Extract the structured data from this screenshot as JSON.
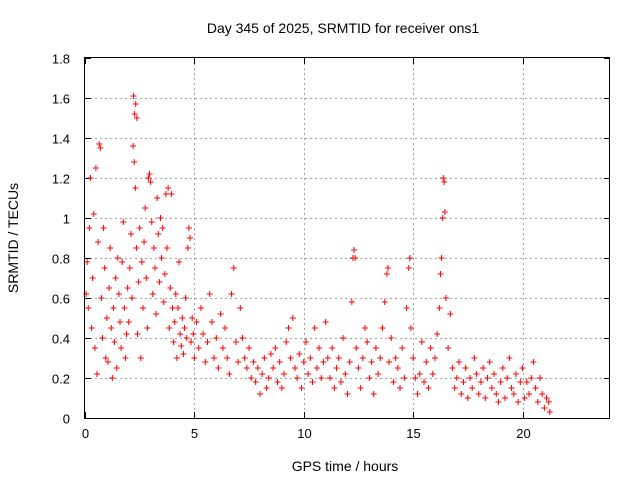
{
  "chart_data": {
    "type": "scatter",
    "title": "Day 345 of 2025, SRMTID for receiver ons1",
    "xlabel": "GPS time / hours",
    "ylabel": "SRMTID / TECUs",
    "xlim": [
      0,
      24
    ],
    "ylim": [
      0,
      1.8
    ],
    "xticks": [
      0,
      5,
      10,
      15,
      20
    ],
    "xtick_labels": [
      "0",
      "5",
      "10",
      "15",
      "20"
    ],
    "yticks": [
      0,
      0.2,
      0.4,
      0.6,
      0.8,
      1,
      1.2,
      1.4,
      1.6,
      1.8
    ],
    "ytick_labels": [
      "0",
      "0.2",
      "0.4",
      "0.6",
      "0.8",
      "1",
      "1.2",
      "1.4",
      "1.6",
      "1.8"
    ],
    "grid": true,
    "marker": "+",
    "color": "#ff0000",
    "series": [
      {
        "name": "SRMTID",
        "points": [
          [
            0.05,
            0.62
          ],
          [
            0.1,
            0.78
          ],
          [
            0.15,
            0.55
          ],
          [
            0.2,
            0.95
          ],
          [
            0.25,
            1.2
          ],
          [
            0.3,
            0.45
          ],
          [
            0.35,
            0.7
          ],
          [
            0.4,
            1.02
          ],
          [
            0.45,
            0.35
          ],
          [
            0.5,
            1.25
          ],
          [
            0.55,
            0.22
          ],
          [
            0.6,
            0.88
          ],
          [
            0.65,
            1.37
          ],
          [
            0.7,
            1.35
          ],
          [
            0.75,
            0.6
          ],
          [
            0.8,
            0.4
          ],
          [
            0.85,
            0.95
          ],
          [
            0.9,
            0.75
          ],
          [
            0.95,
            0.3
          ],
          [
            1.0,
            0.5
          ],
          [
            1.05,
            0.28
          ],
          [
            1.1,
            0.65
          ],
          [
            1.15,
            0.85
          ],
          [
            1.2,
            0.45
          ],
          [
            1.25,
            0.2
          ],
          [
            1.3,
            0.55
          ],
          [
            1.35,
            0.38
          ],
          [
            1.4,
            0.7
          ],
          [
            1.45,
            0.25
          ],
          [
            1.5,
            0.8
          ],
          [
            1.55,
            0.62
          ],
          [
            1.6,
            0.48
          ],
          [
            1.65,
            0.35
          ],
          [
            1.7,
            0.78
          ],
          [
            1.75,
            0.98
          ],
          [
            1.8,
            0.55
          ],
          [
            1.85,
            0.3
          ],
          [
            1.9,
            0.42
          ],
          [
            1.95,
            0.65
          ],
          [
            2.0,
            0.48
          ],
          [
            2.05,
            0.75
          ],
          [
            2.1,
            0.92
          ],
          [
            2.15,
            0.6
          ],
          [
            2.2,
            1.36
          ],
          [
            2.22,
            1.61
          ],
          [
            2.27,
            1.52
          ],
          [
            2.32,
            1.57
          ],
          [
            2.37,
            1.5
          ],
          [
            2.25,
            1.28
          ],
          [
            2.3,
            1.15
          ],
          [
            2.35,
            0.85
          ],
          [
            2.4,
            0.42
          ],
          [
            2.45,
            0.68
          ],
          [
            2.5,
            0.95
          ],
          [
            2.55,
            0.3
          ],
          [
            2.6,
            0.78
          ],
          [
            2.65,
            0.55
          ],
          [
            2.7,
            0.88
          ],
          [
            2.75,
            1.05
          ],
          [
            2.8,
            0.7
          ],
          [
            2.85,
            0.45
          ],
          [
            2.9,
            1.2
          ],
          [
            2.95,
            1.22
          ],
          [
            3.0,
            1.18
          ],
          [
            3.05,
            0.98
          ],
          [
            3.1,
            0.62
          ],
          [
            3.15,
            0.85
          ],
          [
            3.2,
            0.75
          ],
          [
            3.25,
            0.52
          ],
          [
            3.3,
            1.1
          ],
          [
            3.35,
            0.92
          ],
          [
            3.4,
            0.68
          ],
          [
            3.45,
            1.0
          ],
          [
            3.5,
            0.8
          ],
          [
            3.55,
            0.95
          ],
          [
            3.6,
            0.58
          ],
          [
            3.65,
            0.72
          ],
          [
            3.7,
            1.12
          ],
          [
            3.75,
            0.85
          ],
          [
            3.8,
            1.15
          ],
          [
            3.85,
            0.45
          ],
          [
            3.9,
            0.65
          ],
          [
            3.95,
            1.12
          ],
          [
            4.0,
            0.55
          ],
          [
            4.05,
            0.38
          ],
          [
            4.1,
            0.48
          ],
          [
            4.15,
            0.62
          ],
          [
            4.2,
            0.3
          ],
          [
            4.25,
            0.55
          ],
          [
            4.3,
            0.78
          ],
          [
            4.35,
            0.42
          ],
          [
            4.4,
            0.36
          ],
          [
            4.45,
            0.5
          ],
          [
            4.5,
            0.32
          ],
          [
            4.55,
            0.45
          ],
          [
            4.6,
            0.6
          ],
          [
            4.65,
            0.4
          ],
          [
            4.7,
            0.85
          ],
          [
            4.75,
            0.95
          ],
          [
            4.8,
            0.9
          ],
          [
            4.85,
            0.38
          ],
          [
            4.9,
            0.5
          ],
          [
            4.95,
            0.42
          ],
          [
            5.0,
            0.3
          ],
          [
            5.1,
            0.48
          ],
          [
            5.2,
            0.35
          ],
          [
            5.3,
            0.55
          ],
          [
            5.4,
            0.42
          ],
          [
            5.5,
            0.28
          ],
          [
            5.6,
            0.38
          ],
          [
            5.7,
            0.62
          ],
          [
            5.8,
            0.48
          ],
          [
            5.9,
            0.3
          ],
          [
            6.0,
            0.4
          ],
          [
            6.1,
            0.25
          ],
          [
            6.2,
            0.52
          ],
          [
            6.3,
            0.35
          ],
          [
            6.4,
            0.45
          ],
          [
            6.5,
            0.3
          ],
          [
            6.6,
            0.22
          ],
          [
            6.7,
            0.62
          ],
          [
            6.8,
            0.75
          ],
          [
            6.9,
            0.38
          ],
          [
            7.0,
            0.28
          ],
          [
            7.1,
            0.55
          ],
          [
            7.2,
            0.4
          ],
          [
            7.3,
            0.3
          ],
          [
            7.4,
            0.25
          ],
          [
            7.5,
            0.35
          ],
          [
            7.6,
            0.2
          ],
          [
            7.7,
            0.28
          ],
          [
            7.8,
            0.18
          ],
          [
            7.9,
            0.25
          ],
          [
            8.0,
            0.12
          ],
          [
            8.1,
            0.22
          ],
          [
            8.2,
            0.3
          ],
          [
            8.3,
            0.15
          ],
          [
            8.4,
            0.2
          ],
          [
            8.5,
            0.32
          ],
          [
            8.6,
            0.25
          ],
          [
            8.7,
            0.35
          ],
          [
            8.8,
            0.18
          ],
          [
            8.9,
            0.28
          ],
          [
            9.0,
            0.15
          ],
          [
            9.1,
            0.22
          ],
          [
            9.2,
            0.38
          ],
          [
            9.3,
            0.45
          ],
          [
            9.4,
            0.3
          ],
          [
            9.5,
            0.5
          ],
          [
            9.6,
            0.25
          ],
          [
            9.7,
            0.2
          ],
          [
            9.8,
            0.32
          ],
          [
            9.9,
            0.15
          ],
          [
            10.0,
            0.28
          ],
          [
            10.1,
            0.38
          ],
          [
            10.2,
            0.22
          ],
          [
            10.3,
            0.3
          ],
          [
            10.4,
            0.18
          ],
          [
            10.5,
            0.45
          ],
          [
            10.6,
            0.25
          ],
          [
            10.7,
            0.35
          ],
          [
            10.8,
            0.2
          ],
          [
            10.9,
            0.28
          ],
          [
            11.0,
            0.48
          ],
          [
            11.1,
            0.3
          ],
          [
            11.2,
            0.2
          ],
          [
            11.3,
            0.35
          ],
          [
            11.4,
            0.15
          ],
          [
            11.5,
            0.25
          ],
          [
            11.6,
            0.3
          ],
          [
            11.7,
            0.18
          ],
          [
            11.8,
            0.4
          ],
          [
            11.9,
            0.22
          ],
          [
            12.0,
            0.12
          ],
          [
            12.1,
            0.28
          ],
          [
            12.2,
            0.58
          ],
          [
            12.25,
            0.8
          ],
          [
            12.3,
            0.84
          ],
          [
            12.35,
            0.8
          ],
          [
            12.4,
            0.35
          ],
          [
            12.5,
            0.25
          ],
          [
            12.6,
            0.15
          ],
          [
            12.7,
            0.3
          ],
          [
            12.8,
            0.45
          ],
          [
            12.9,
            0.38
          ],
          [
            13.0,
            0.2
          ],
          [
            13.1,
            0.28
          ],
          [
            13.2,
            0.12
          ],
          [
            13.3,
            0.35
          ],
          [
            13.4,
            0.22
          ],
          [
            13.5,
            0.3
          ],
          [
            13.6,
            0.45
          ],
          [
            13.7,
            0.58
          ],
          [
            13.8,
            0.72
          ],
          [
            13.85,
            0.75
          ],
          [
            13.9,
            0.28
          ],
          [
            14.0,
            0.4
          ],
          [
            14.1,
            0.18
          ],
          [
            14.2,
            0.3
          ],
          [
            14.3,
            0.25
          ],
          [
            14.4,
            0.15
          ],
          [
            14.5,
            0.35
          ],
          [
            14.6,
            0.2
          ],
          [
            14.7,
            0.55
          ],
          [
            14.8,
            0.75
          ],
          [
            14.85,
            0.8
          ],
          [
            14.9,
            0.45
          ],
          [
            15.0,
            0.3
          ],
          [
            15.1,
            0.2
          ],
          [
            15.2,
            0.12
          ],
          [
            15.3,
            0.22
          ],
          [
            15.4,
            0.38
          ],
          [
            15.5,
            0.18
          ],
          [
            15.6,
            0.28
          ],
          [
            15.7,
            0.15
          ],
          [
            15.8,
            0.35
          ],
          [
            15.9,
            0.22
          ],
          [
            16.0,
            0.3
          ],
          [
            16.1,
            0.42
          ],
          [
            16.2,
            0.55
          ],
          [
            16.25,
            0.72
          ],
          [
            16.3,
            0.8
          ],
          [
            16.35,
            1.0
          ],
          [
            16.38,
            1.2
          ],
          [
            16.42,
            1.18
          ],
          [
            16.45,
            1.03
          ],
          [
            16.5,
            0.6
          ],
          [
            16.6,
            0.35
          ],
          [
            16.7,
            0.52
          ],
          [
            16.8,
            0.25
          ],
          [
            16.9,
            0.15
          ],
          [
            17.0,
            0.2
          ],
          [
            17.1,
            0.28
          ],
          [
            17.2,
            0.12
          ],
          [
            17.3,
            0.18
          ],
          [
            17.4,
            0.25
          ],
          [
            17.5,
            0.1
          ],
          [
            17.6,
            0.2
          ],
          [
            17.7,
            0.15
          ],
          [
            17.8,
            0.3
          ],
          [
            17.9,
            0.22
          ],
          [
            18.0,
            0.12
          ],
          [
            18.1,
            0.18
          ],
          [
            18.2,
            0.25
          ],
          [
            18.3,
            0.1
          ],
          [
            18.4,
            0.2
          ],
          [
            18.5,
            0.28
          ],
          [
            18.6,
            0.15
          ],
          [
            18.7,
            0.22
          ],
          [
            18.8,
            0.12
          ],
          [
            18.9,
            0.08
          ],
          [
            19.0,
            0.18
          ],
          [
            19.1,
            0.25
          ],
          [
            19.2,
            0.1
          ],
          [
            19.3,
            0.2
          ],
          [
            19.4,
            0.3
          ],
          [
            19.5,
            0.15
          ],
          [
            19.6,
            0.12
          ],
          [
            19.7,
            0.22
          ],
          [
            19.8,
            0.08
          ],
          [
            19.9,
            0.18
          ],
          [
            20.0,
            0.25
          ],
          [
            20.1,
            0.1
          ],
          [
            20.2,
            0.18
          ],
          [
            20.3,
            0.12
          ],
          [
            20.4,
            0.2
          ],
          [
            20.5,
            0.28
          ],
          [
            20.6,
            0.15
          ],
          [
            20.7,
            0.08
          ],
          [
            20.8,
            0.2
          ],
          [
            20.9,
            0.12
          ],
          [
            21.0,
            0.05
          ],
          [
            21.1,
            0.1
          ],
          [
            21.2,
            0.08
          ],
          [
            21.25,
            0.03
          ]
        ]
      }
    ]
  }
}
